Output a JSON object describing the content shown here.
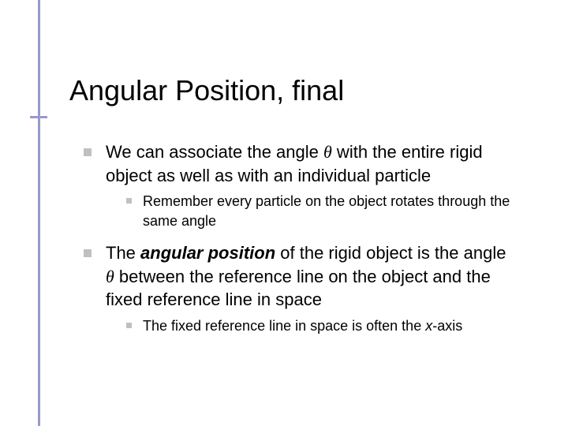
{
  "accent_color": "#9999cc",
  "bullet_color": "#c0c0c0",
  "title": "Angular Position, final",
  "body": {
    "p1_a": "We can associate the angle ",
    "p1_theta": "θ",
    "p1_b": " with the entire rigid object as well as with an individual particle",
    "p1_sub": "Remember every particle on the object rotates through the same angle",
    "p2_a": "The ",
    "p2_em": "angular position",
    "p2_b": " of the rigid object is the angle ",
    "p2_theta": "θ",
    "p2_c": " between the reference line on the object and the fixed reference line in space",
    "p2_sub_a": "The fixed reference line in space is often the ",
    "p2_sub_x": "x",
    "p2_sub_b": "-axis"
  }
}
